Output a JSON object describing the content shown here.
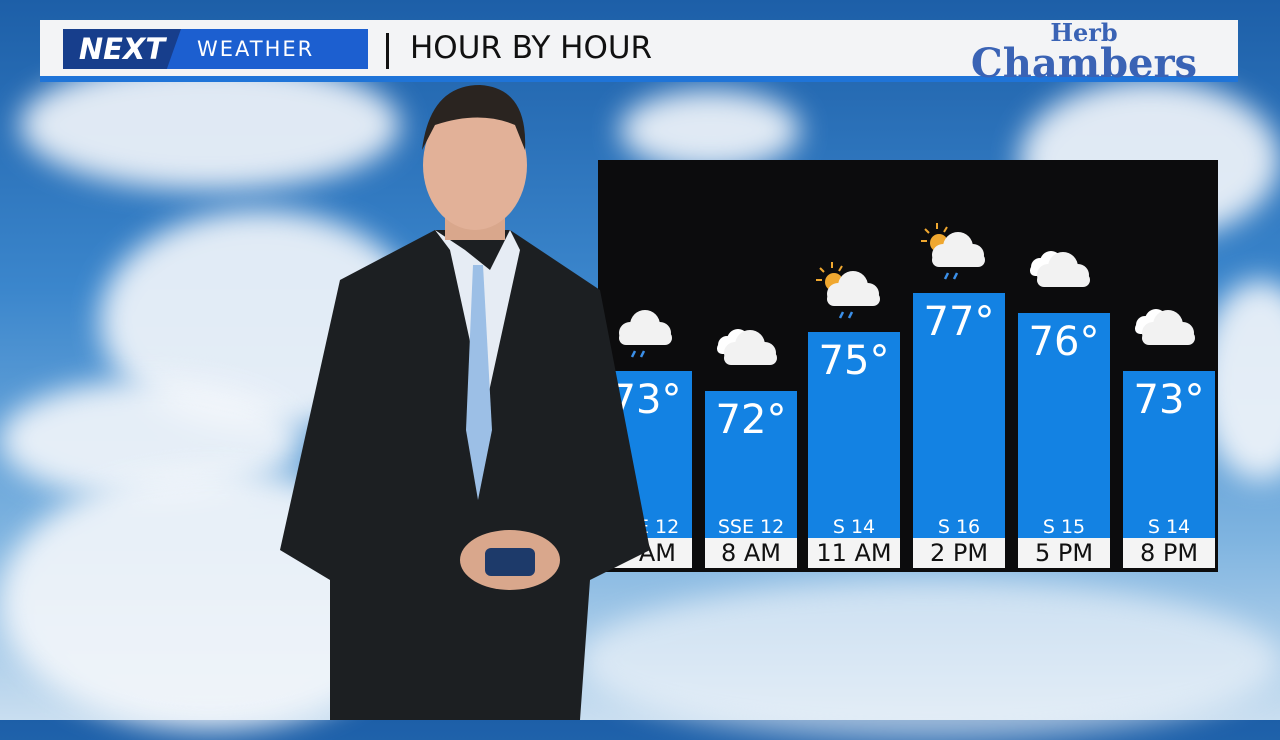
{
  "header": {
    "brand_logo": "NEXT",
    "brand_sub": "WEATHER",
    "title": "HOUR BY HOUR",
    "sponsor_line1": "Herb",
    "sponsor_line2": "Chambers"
  },
  "colors": {
    "bar": "#1382e3",
    "header_accent": "#1f74d8",
    "brand": "#1c5fd0"
  },
  "chart_data": {
    "type": "bar",
    "title": "HOUR BY HOUR",
    "categories": [
      "5 AM",
      "8 AM",
      "11 AM",
      "2 PM",
      "5 PM",
      "8 PM"
    ],
    "values": [
      73,
      72,
      75,
      77,
      76,
      73
    ],
    "value_labels": [
      "73°",
      "72°",
      "75°",
      "77°",
      "76°",
      "73°"
    ],
    "wind": [
      "SSE 12",
      "SSE 12",
      "S 14",
      "S 16",
      "S 15",
      "S 14"
    ],
    "icons": [
      "cloud-rain",
      "clouds",
      "sun-cloud-rain",
      "sun-cloud-rain",
      "clouds",
      "clouds"
    ],
    "unit": "°F",
    "grid": false
  }
}
